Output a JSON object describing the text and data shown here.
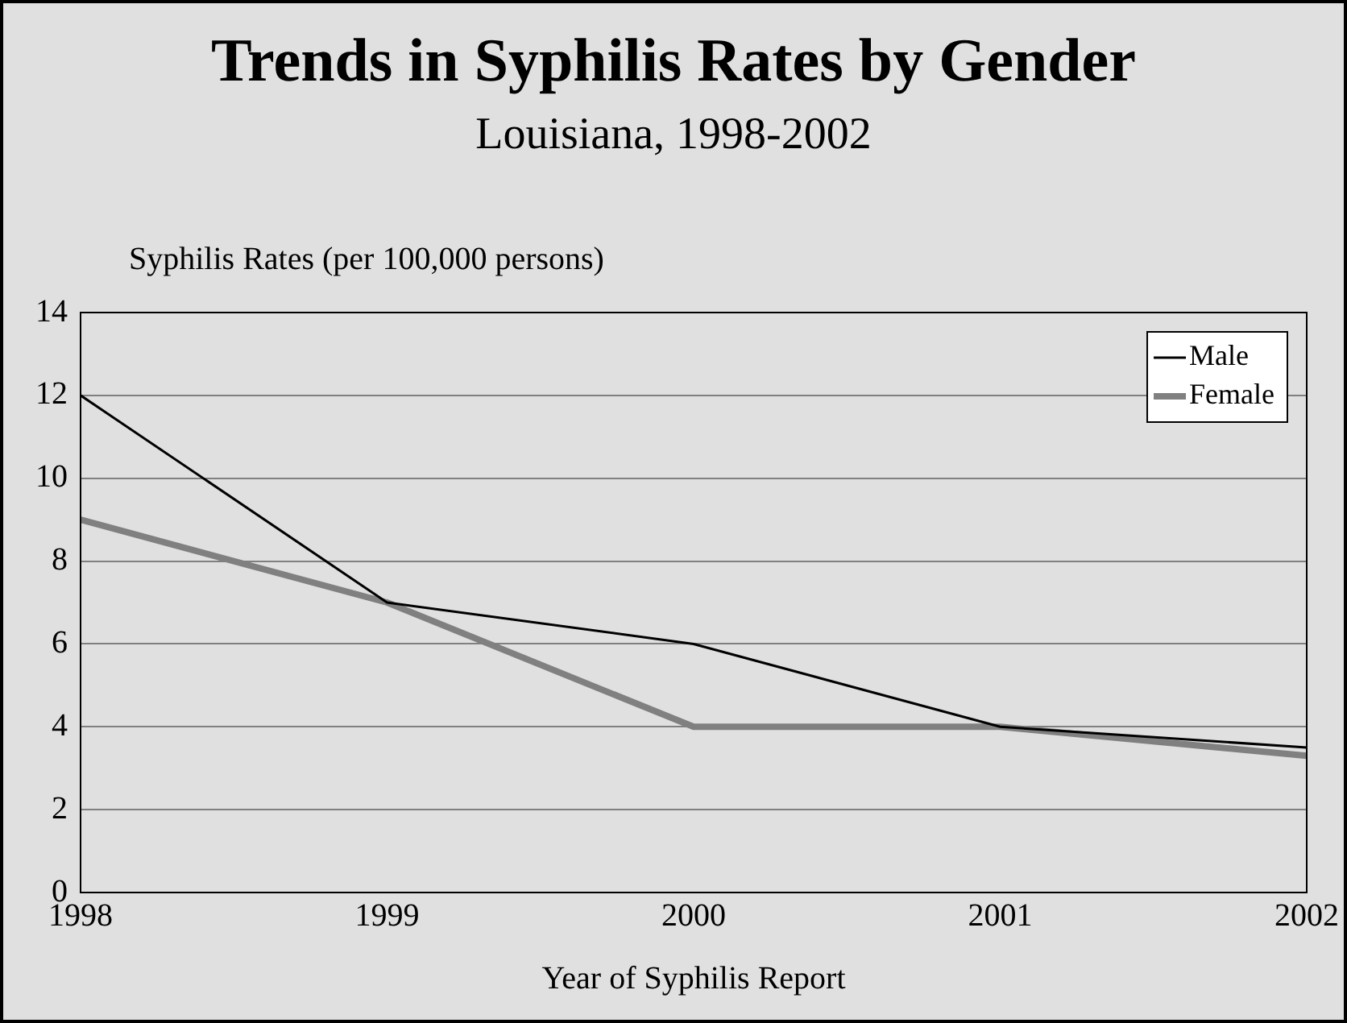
{
  "chart_data": {
    "type": "line",
    "title": "Trends in Syphilis Rates by Gender",
    "subtitle": "Louisiana, 1998-2002",
    "ylabel": "Syphilis Rates (per 100,000 persons)",
    "xlabel": "Year of Syphilis Report",
    "x": [
      1998,
      1999,
      2000,
      2001,
      2002
    ],
    "series": [
      {
        "name": "Male",
        "color": "#000000",
        "values": [
          12,
          7,
          6,
          4,
          3.5
        ]
      },
      {
        "name": "Female",
        "color": "#808080",
        "values": [
          9,
          7,
          4,
          4,
          3.3
        ]
      }
    ],
    "xlim": [
      1998,
      2002
    ],
    "xticks": [
      1998,
      1999,
      2000,
      2001,
      2002
    ],
    "ylim": [
      0,
      14
    ],
    "yticks": [
      0,
      2,
      4,
      6,
      8,
      10,
      12,
      14
    ],
    "grid": "y",
    "legend": "top right",
    "marker": "none",
    "line_style": "solid"
  }
}
